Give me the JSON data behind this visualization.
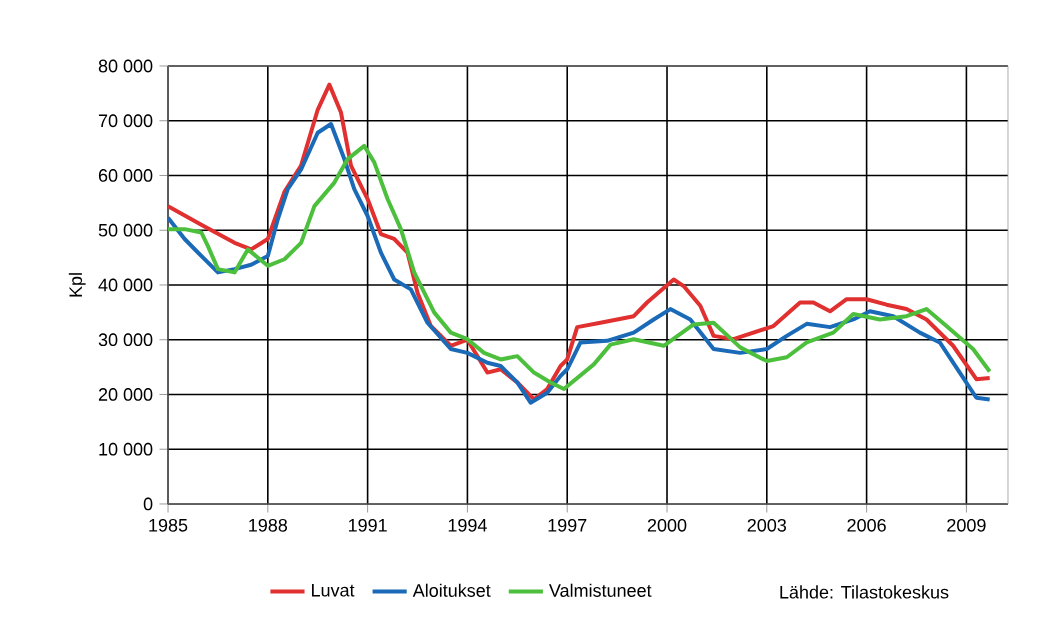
{
  "chart_data": {
    "type": "line",
    "ylabel": "Kpl",
    "xlim": [
      1985,
      2010.25
    ],
    "xticks": [
      1985,
      1988,
      1991,
      1994,
      1997,
      2000,
      2003,
      2006,
      2009
    ],
    "ylim": [
      0,
      80000
    ],
    "yticks": [
      0,
      {
        "value": 10000,
        "label": "10 000"
      },
      {
        "value": 20000,
        "label": "20 000"
      },
      {
        "value": 30000,
        "label": "30 000"
      },
      {
        "value": 40000,
        "label": "40 000"
      },
      {
        "value": 50000,
        "label": "50 000"
      },
      {
        "value": 60000,
        "label": "60 000"
      },
      {
        "value": 70000,
        "label": "70 000"
      },
      {
        "value": 80000,
        "label": "80 000"
      }
    ],
    "grid": true,
    "legend": "bottom",
    "line_style": "solid",
    "annotations": [
      "Lähde: Tilastokeskus"
    ],
    "series": [
      {
        "name": "Luvat",
        "color": "#e03030",
        "x": [
          1985,
          1986,
          1987,
          1987.5,
          1988,
          1988.5,
          1989,
          1989.5,
          1989.85,
          1990.2,
          1990.5,
          1991,
          1991.4,
          1991.8,
          1992.2,
          1992.5,
          1992.9,
          1993.5,
          1994,
          1994.6,
          1995,
          1995.5,
          1996,
          1996.4,
          1996.8,
          1997,
          1997.3,
          1998,
          1999,
          1999.4,
          2000.2,
          2000.5,
          2001,
          2001.4,
          2002,
          2002.6,
          2003.2,
          2004,
          2004.4,
          2004.9,
          2005.4,
          2006,
          2006.6,
          2007.2,
          2007.8,
          2008.6,
          2009.3,
          2009.7
        ],
        "values": [
          54400,
          51000,
          47700,
          46500,
          48400,
          57000,
          61800,
          72000,
          76600,
          71500,
          61800,
          55700,
          49300,
          48400,
          45900,
          38600,
          32500,
          28900,
          30000,
          24000,
          24600,
          22200,
          19100,
          21000,
          25200,
          26400,
          32300,
          33100,
          34300,
          36800,
          41000,
          39800,
          36200,
          30700,
          30100,
          31300,
          32500,
          36800,
          36800,
          35200,
          37400,
          37400,
          36400,
          35600,
          33700,
          28900,
          22800,
          23000
        ]
      },
      {
        "name": "Aloitukset",
        "color": "#1a6ab8",
        "x": [
          1985,
          1985.5,
          1986,
          1986.5,
          1987,
          1987.5,
          1988,
          1988.3,
          1988.6,
          1989,
          1989.5,
          1989.9,
          1990.3,
          1990.6,
          1991,
          1991.4,
          1991.8,
          1992.3,
          1992.8,
          1993.5,
          1994,
          1994.6,
          1995,
          1995.5,
          1995.9,
          1996.4,
          1996.8,
          1997,
          1997.4,
          1998.2,
          1999,
          1999.6,
          2000.1,
          2000.7,
          2001.4,
          2002.2,
          2003,
          2003.6,
          2004.2,
          2004.9,
          2005.6,
          2006.1,
          2006.8,
          2007.6,
          2008.2,
          2008.8,
          2009.3,
          2009.7
        ],
        "values": [
          52300,
          48400,
          45300,
          42300,
          42900,
          43700,
          45300,
          52000,
          57500,
          61100,
          67800,
          69400,
          63000,
          57500,
          52600,
          45900,
          41000,
          39200,
          33100,
          28300,
          27600,
          25800,
          25200,
          22200,
          18500,
          20300,
          23400,
          24600,
          29500,
          29800,
          31300,
          33700,
          35600,
          33700,
          28300,
          27600,
          28300,
          30700,
          32900,
          32300,
          33700,
          35200,
          34300,
          31300,
          29500,
          24000,
          19400,
          19100
        ]
      },
      {
        "name": "Valmistuneet",
        "color": "#4cbf3c",
        "x": [
          1985,
          1985.5,
          1986,
          1986.2,
          1986.5,
          1987,
          1987.4,
          1988,
          1988.5,
          1989,
          1989.4,
          1990,
          1990.4,
          1990.9,
          1991.2,
          1991.6,
          1992,
          1992.4,
          1993,
          1993.5,
          1994,
          1994.5,
          1995,
          1995.5,
          1996,
          1996.5,
          1996.9,
          1997.8,
          1998.3,
          1999,
          1999.9,
          2000.8,
          2001.4,
          2002.2,
          2003,
          2003.6,
          2004.2,
          2005,
          2005.6,
          2006.4,
          2007.2,
          2007.8,
          2008.4,
          2009.2,
          2009.7
        ],
        "values": [
          50200,
          50200,
          49600,
          47100,
          42900,
          42300,
          46500,
          43500,
          44700,
          47700,
          54400,
          58700,
          63000,
          65400,
          62400,
          55700,
          50200,
          42300,
          35000,
          31300,
          30100,
          27600,
          26400,
          27000,
          24000,
          22200,
          21000,
          25500,
          29100,
          30100,
          28900,
          32800,
          33100,
          28600,
          26100,
          26800,
          29500,
          31300,
          34700,
          33700,
          34300,
          35600,
          32500,
          28300,
          24200
        ]
      }
    ]
  }
}
